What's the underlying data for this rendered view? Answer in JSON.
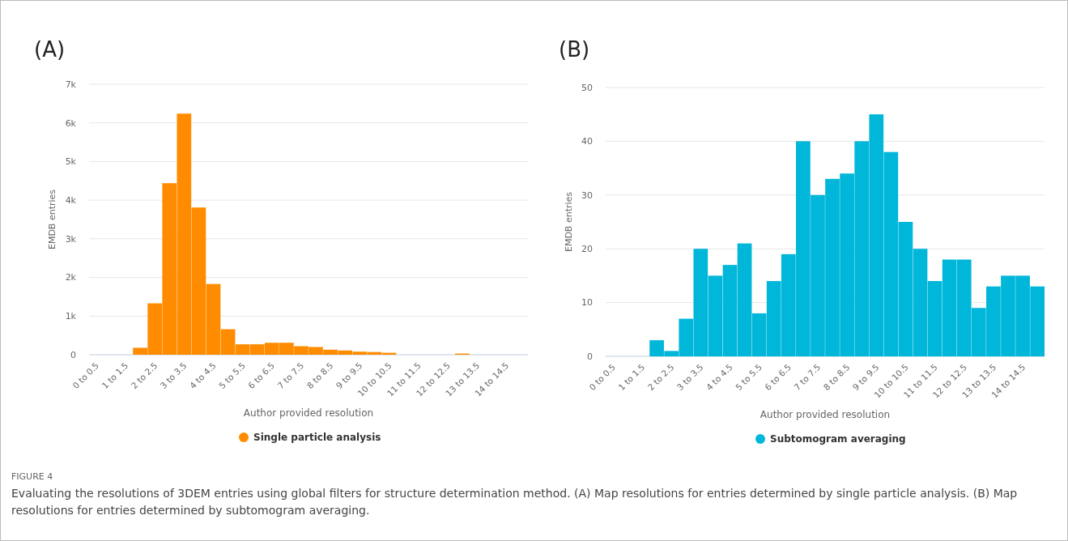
{
  "chart_data": [
    {
      "type": "bar",
      "title": "(A)",
      "xlabel": "Author provided resolution",
      "ylabel": "EMDB entries",
      "categories": [
        "0 to 0.5",
        null,
        "1 to 1.5",
        null,
        "2 to 2.5",
        null,
        "3 to 3.5",
        null,
        "4 to 4.5",
        null,
        "5 to 5.5",
        null,
        "6 to 6.5",
        null,
        "7 to 7.5",
        null,
        "8 to 8.5",
        null,
        "9 to 9.5",
        null,
        "10 to 10.5",
        null,
        "11 to 11.5",
        null,
        "12 to 12.5",
        null,
        "13 to 13.5",
        null,
        "14 to 14.5",
        null
      ],
      "series": [
        {
          "name": "Single particle analysis",
          "color": "#ff8c00",
          "values": [
            0,
            0,
            0,
            180,
            1330,
            4440,
            6240,
            3810,
            1830,
            660,
            270,
            270,
            310,
            310,
            220,
            200,
            130,
            110,
            80,
            70,
            50,
            0,
            0,
            0,
            0,
            30,
            0,
            0,
            0,
            0
          ]
        }
      ],
      "ylim": [
        0,
        7000
      ],
      "yticks": [
        0,
        {
          "value": 1000,
          "label": "1k"
        },
        {
          "value": 2000,
          "label": "2k"
        },
        {
          "value": 3000,
          "label": "3k"
        },
        {
          "value": 4000,
          "label": "4k"
        },
        {
          "value": 5000,
          "label": "5k"
        },
        {
          "value": 6000,
          "label": "6k"
        },
        {
          "value": 7000,
          "label": "7k"
        }
      ],
      "grid": "y",
      "legend": "bottom",
      "annotations": [
        "FIGURE 4",
        "Evaluating the resolutions of 3DEM entries using global filters for structure determination method. (A) Map resolutions for entries determined by single particle analysis. (B) Map resolutions for entries determined by subtomogram averaging."
      ]
    },
    {
      "type": "bar",
      "title": "(B)",
      "xlabel": "Author provided resolution",
      "ylabel": "EMDB entries",
      "categories": [
        "0 to 0.5",
        null,
        "1 to 1.5",
        null,
        "2 to 2.5",
        null,
        "3 to 3.5",
        null,
        "4 to 4.5",
        null,
        "5 to 5.5",
        null,
        "6 to 6.5",
        null,
        "7 to 7.5",
        null,
        "8 to 8.5",
        null,
        "9 to 9.5",
        null,
        "10 to 10.5",
        null,
        "11 to 11.5",
        null,
        "12 to 12.5",
        null,
        "13 to 13.5",
        null,
        "14 to 14.5",
        null
      ],
      "series": [
        {
          "name": "Subtomogram averaging",
          "color": "#00b7da",
          "values": [
            0,
            0,
            0,
            3,
            1,
            7,
            20,
            15,
            17,
            21,
            8,
            14,
            19,
            40,
            30,
            33,
            34,
            40,
            45,
            38,
            25,
            20,
            14,
            18,
            18,
            9,
            13,
            15,
            15,
            13
          ]
        }
      ],
      "ylim": [
        0,
        50
      ],
      "yticks": [
        0,
        10,
        20,
        30,
        40,
        50
      ],
      "grid": "y",
      "legend": "bottom"
    }
  ]
}
